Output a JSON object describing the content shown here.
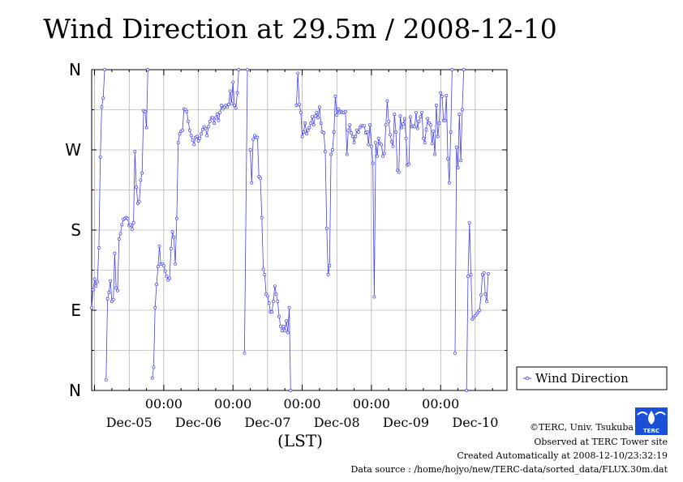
{
  "chart_data": {
    "type": "line",
    "title": "Wind Direction at 29.5m / 2008-12-10",
    "xlabel": "(LST)",
    "x_tick_labels": [
      "00:00",
      "00:00",
      "00:00",
      "00:00",
      "00:00"
    ],
    "date_labels": [
      "Dec-05",
      "Dec-06",
      "Dec-07",
      "Dec-08",
      "Dec-09",
      "Dec-10"
    ],
    "y_tick_labels": [
      "N",
      "W",
      "S",
      "E",
      "N"
    ],
    "y_tick_values": [
      360,
      270,
      180,
      90,
      0
    ],
    "ylim": [
      0,
      360
    ],
    "xlim_hours": [
      -1,
      143
    ],
    "grid": true,
    "series": [
      {
        "name": "Wind Direction",
        "color": "#4040ff",
        "segments": [
          [
            [
              -1,
              93
            ],
            [
              -0.5,
              113
            ],
            [
              0,
              125
            ],
            [
              0.5,
              117
            ],
            [
              1,
              122
            ],
            [
              1.5,
              160
            ],
            [
              2,
              262
            ],
            [
              2.5,
              318
            ],
            [
              3,
              328
            ],
            [
              3.5,
              360
            ]
          ],
          [
            [
              4,
              12
            ],
            [
              4.5,
              103
            ],
            [
              5,
              110
            ],
            [
              5.5,
              123
            ],
            [
              6,
              100
            ],
            [
              6.5,
              102
            ],
            [
              7,
              154
            ],
            [
              7.5,
              115
            ],
            [
              8,
              112
            ],
            [
              8.5,
              170
            ],
            [
              9,
              176
            ],
            [
              9.5,
              186
            ],
            [
              10,
              192
            ],
            [
              10.5,
              193
            ],
            [
              11,
              194
            ],
            [
              11.5,
              193
            ],
            [
              12,
              185
            ],
            [
              12.5,
              186
            ],
            [
              13,
              181
            ],
            [
              13.5,
              188
            ],
            [
              14,
              268
            ],
            [
              14.5,
              228
            ],
            [
              15,
              210
            ],
            [
              15.5,
              212
            ],
            [
              16,
              236
            ],
            [
              16.5,
              244
            ],
            [
              17,
              314
            ],
            [
              17.5,
              313
            ],
            [
              18,
              295
            ],
            [
              18.5,
              360
            ]
          ],
          [
            [
              20,
              14
            ],
            [
              20.5,
              26
            ],
            [
              21,
              93
            ],
            [
              21.5,
              119
            ],
            [
              22,
              139
            ],
            [
              22.5,
              162
            ],
            [
              23,
              142
            ],
            [
              23.5,
              142
            ],
            [
              24,
              140
            ],
            [
              24.5,
              134
            ],
            [
              25,
              128
            ],
            [
              25.5,
              124
            ],
            [
              26,
              126
            ],
            [
              26.5,
              159
            ],
            [
              27,
              178
            ],
            [
              27.5,
              172
            ],
            [
              28,
              142
            ],
            [
              28.5,
              193
            ],
            [
              29,
              278
            ],
            [
              29.5,
              288
            ],
            [
              30,
              291
            ],
            [
              30.5,
              292
            ],
            [
              31,
              316
            ],
            [
              31.5,
              315
            ],
            [
              32,
              313
            ],
            [
              32.5,
              302
            ],
            [
              33,
              292
            ],
            [
              33.5,
              286
            ],
            [
              34,
              281
            ],
            [
              34.5,
              276
            ],
            [
              35,
              284
            ],
            [
              35.5,
              285
            ],
            [
              36,
              280
            ],
            [
              36.5,
              283
            ],
            [
              37,
              288
            ],
            [
              37.5,
              293
            ],
            [
              38,
              296
            ],
            [
              38.5,
              294
            ],
            [
              39,
              286
            ],
            [
              39.5,
              296
            ],
            [
              40,
              302
            ],
            [
              40.5,
              306
            ],
            [
              41,
              306
            ],
            [
              41.5,
              300
            ],
            [
              42,
              306
            ],
            [
              42.5,
              310
            ],
            [
              43,
              303
            ],
            [
              43.5,
              312
            ],
            [
              44,
              320
            ],
            [
              44.5,
              316
            ],
            [
              45,
              318
            ],
            [
              45.5,
              320
            ],
            [
              46,
              318
            ],
            [
              46.5,
              321
            ],
            [
              47,
              336
            ],
            [
              47.5,
              322
            ],
            [
              48,
              346
            ],
            [
              48.5,
              320
            ],
            [
              49,
              317
            ],
            [
              49.5,
              334
            ],
            [
              50,
              360
            ]
          ],
          [
            [
              52,
              42
            ],
            [
              53,
              360
            ]
          ],
          [
            [
              54,
              270
            ],
            [
              54.5,
              233
            ],
            [
              55,
              282
            ],
            [
              55.5,
              286
            ],
            [
              56,
              284
            ],
            [
              56.5,
              284
            ],
            [
              57,
              240
            ],
            [
              57.5,
              238
            ],
            [
              58,
              194
            ],
            [
              58.5,
              136
            ],
            [
              59,
              130
            ],
            [
              59.5,
              108
            ],
            [
              60,
              106
            ],
            [
              60.5,
              98
            ],
            [
              61,
              88
            ],
            [
              61.5,
              88
            ],
            [
              62,
              100
            ],
            [
              62.5,
              117
            ],
            [
              63,
              108
            ],
            [
              63.5,
              100
            ],
            [
              64,
              83
            ],
            [
              64.5,
              72
            ],
            [
              65,
              67
            ],
            [
              65.5,
              72
            ],
            [
              66,
              67
            ],
            [
              66.5,
              78
            ],
            [
              67,
              65
            ],
            [
              67.5,
              93
            ],
            [
              68,
              0
            ]
          ],
          [
            [
              70,
              320
            ],
            [
              70.5,
              356
            ],
            [
              71,
              321
            ],
            [
              71.5,
              312
            ],
            [
              72,
              285
            ],
            [
              72.5,
              290
            ],
            [
              73,
              300
            ],
            [
              73.5,
              288
            ],
            [
              74,
              292
            ],
            [
              74.5,
              295
            ],
            [
              75,
              300
            ],
            [
              75.5,
              307
            ],
            [
              76,
              298
            ],
            [
              76.5,
              308
            ],
            [
              77,
              312
            ],
            [
              77.5,
              306
            ],
            [
              78,
              318
            ],
            [
              78.5,
              300
            ],
            [
              79,
              290
            ],
            [
              79.5,
              289
            ],
            [
              80,
              268
            ],
            [
              80.5,
              182
            ],
            [
              81,
              130
            ],
            [
              81.5,
              140
            ],
            [
              82,
              265
            ],
            [
              82.5,
              270
            ],
            [
              83,
              290
            ],
            [
              83.5,
              330
            ],
            [
              84,
              309
            ],
            [
              84.5,
              316
            ],
            [
              85,
              312
            ],
            [
              85.5,
              313
            ],
            [
              86,
              312
            ],
            [
              86.5,
              312
            ],
            [
              87,
              313
            ],
            [
              87.5,
              265
            ],
            [
              88,
              292
            ],
            [
              88.5,
              298
            ],
            [
              89,
              289
            ],
            [
              89.5,
              285
            ],
            [
              90,
              278
            ],
            [
              90.5,
              285
            ],
            [
              91,
              292
            ],
            [
              91.5,
              290
            ],
            [
              92,
              295
            ],
            [
              92.5,
              297
            ],
            [
              93,
              297
            ],
            [
              93.5,
              297
            ],
            [
              94,
              289
            ],
            [
              94.5,
              290
            ],
            [
              95,
              276
            ],
            [
              95.5,
              298
            ],
            [
              96,
              274
            ],
            [
              96.5,
              255
            ],
            [
              97,
              105
            ],
            [
              97.5,
              278
            ],
            [
              98,
              263
            ],
            [
              98.5,
              283
            ],
            [
              99,
              277
            ],
            [
              99.5,
              276
            ],
            [
              100,
              263
            ],
            [
              100.5,
              266
            ],
            [
              101,
              298
            ],
            [
              101.5,
              325
            ],
            [
              102,
              302
            ],
            [
              102.5,
              287
            ],
            [
              103,
              279
            ],
            [
              103.5,
              274
            ],
            [
              104,
              310
            ],
            [
              104.5,
              290
            ],
            [
              105,
              247
            ],
            [
              105.5,
              245
            ],
            [
              106,
              308
            ],
            [
              106.5,
              295
            ],
            [
              107,
              299
            ],
            [
              107.5,
              305
            ],
            [
              108,
              283
            ],
            [
              108.5,
              253
            ],
            [
              109,
              254
            ],
            [
              109.5,
              307
            ],
            [
              110,
              296
            ],
            [
              110.5,
              297
            ],
            [
              111,
              296
            ],
            [
              111.5,
              312
            ],
            [
              112,
              294
            ],
            [
              112.5,
              302
            ],
            [
              113,
              307
            ],
            [
              113.5,
              312
            ],
            [
              114,
              283
            ],
            [
              114.5,
              278
            ],
            [
              115,
              293
            ],
            [
              115.5,
              305
            ],
            [
              116,
              300
            ],
            [
              116.5,
              298
            ],
            [
              117,
              277
            ],
            [
              117.5,
              291
            ],
            [
              118,
              265
            ],
            [
              118.5,
              320
            ],
            [
              119,
              285
            ],
            [
              119.5,
              300
            ],
            [
              120,
              334
            ],
            [
              120.5,
              330
            ],
            [
              121,
              303
            ],
            [
              121.5,
              303
            ],
            [
              122,
              331
            ],
            [
              122.5,
              260
            ],
            [
              123,
              233
            ],
            [
              123.5,
              290
            ],
            [
              124,
              360
            ]
          ],
          [
            [
              125,
              42
            ],
            [
              125.5,
              273
            ],
            [
              126,
              250
            ],
            [
              126.5,
              310
            ],
            [
              127,
              258
            ],
            [
              127.5,
              315
            ],
            [
              128,
              360
            ]
          ],
          [
            [
              129,
              0
            ],
            [
              129.5,
              128
            ],
            [
              130,
              188
            ],
            [
              130.5,
              130
            ],
            [
              131,
              80
            ],
            [
              131.5,
              82
            ],
            [
              132,
              84
            ],
            [
              132.5,
              86
            ],
            [
              133,
              88
            ],
            [
              133.5,
              90
            ],
            [
              134,
              107
            ],
            [
              134.5,
              130
            ],
            [
              135,
              132
            ],
            [
              135.5,
              108
            ],
            [
              136,
              100
            ],
            [
              136.5,
              131
            ]
          ]
        ]
      }
    ],
    "legend_position": "right",
    "legend_label": "Wind Direction"
  },
  "footer": {
    "copyright": "©TERC, Univ. Tsukuba",
    "observed": "Observed at TERC Tower site",
    "created": "Created Automatically at 2008-12-10/23:32:19",
    "source": "Data source : /home/hojyo/new/TERC-data/sorted_data/FLUX.30m.dat"
  },
  "logo": {
    "label": "TERC"
  }
}
